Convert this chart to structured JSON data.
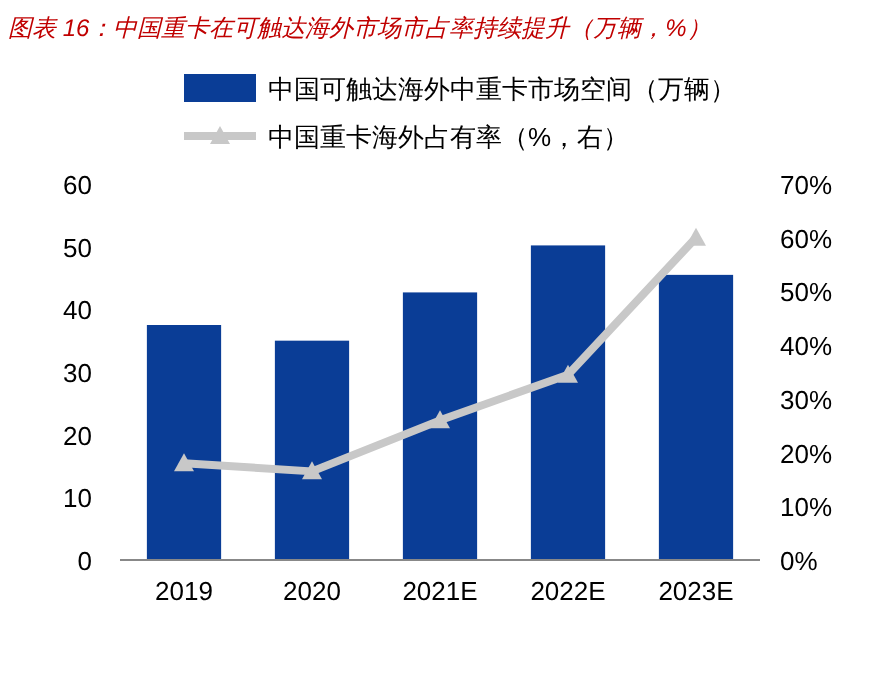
{
  "chart_data": {
    "type": "bar",
    "title": "图表 16：中国重卡在可触达海外市场市占率持续提升（万辆，%）",
    "categories": [
      "2019",
      "2020",
      "2021E",
      "2022E",
      "2023E"
    ],
    "series": [
      {
        "name": "中国可触达海外中重卡市场空间（万辆）",
        "color": "#0a3d96",
        "values": [
          37.5,
          35,
          42.7,
          50.2,
          45.5
        ]
      },
      {
        "name": "中国重卡海外占有率（%，右）",
        "type": "line",
        "axis": "y2",
        "color": "#c8c8c8",
        "marker": "triangle",
        "values": [
          18,
          16.5,
          26,
          34.5,
          60
        ]
      }
    ],
    "ylim": [
      0,
      60
    ],
    "yticks": [
      0,
      10,
      20,
      30,
      40,
      50,
      60
    ],
    "y2lim": [
      0,
      70
    ],
    "y2ticks": [
      {
        "value": 0,
        "label": "0%"
      },
      {
        "value": 10,
        "label": "10%"
      },
      {
        "value": 20,
        "label": "20%"
      },
      {
        "value": 30,
        "label": "30%"
      },
      {
        "value": 40,
        "label": "40%"
      },
      {
        "value": 50,
        "label": "50%"
      },
      {
        "value": 60,
        "label": "60%"
      },
      {
        "value": 70,
        "label": "70%"
      }
    ],
    "legend": "top",
    "grid": false
  }
}
